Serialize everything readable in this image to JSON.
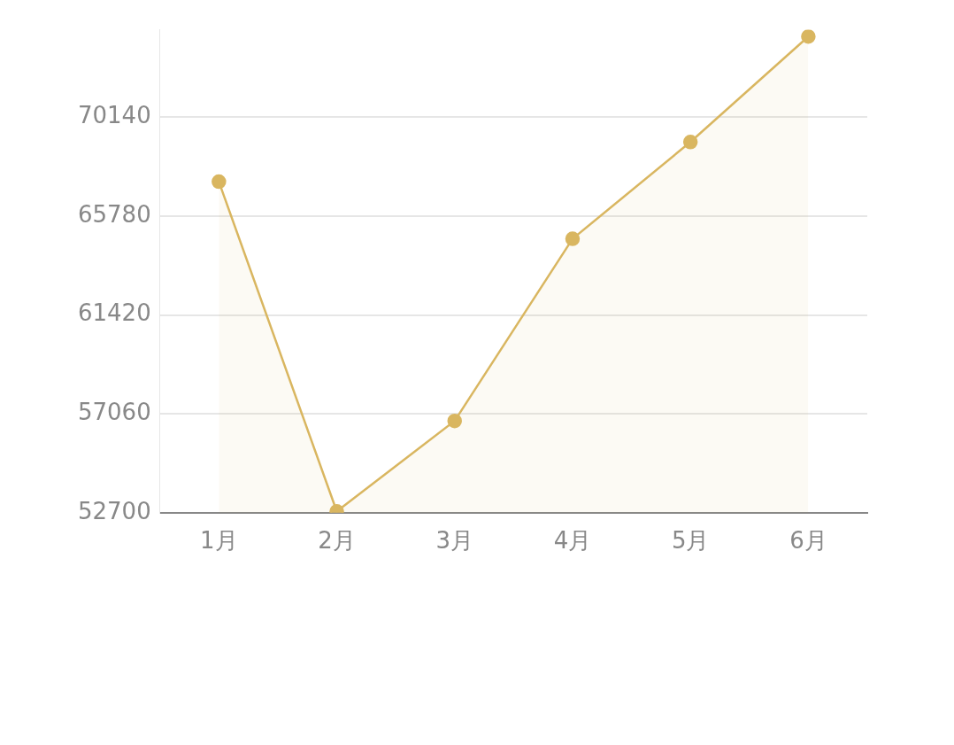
{
  "chart_data": {
    "type": "area",
    "categories": [
      "1月",
      "2月",
      "3月",
      "4月",
      "5月",
      "6月"
    ],
    "series": [
      {
        "color": "#d9b660",
        "values": [
          67300,
          52760,
          56750,
          64780,
          69050,
          73700
        ]
      }
    ],
    "ylim": [
      52700,
      74000
    ],
    "yticks": [
      52700,
      57060,
      61420,
      65780,
      70140
    ],
    "grid": "y",
    "marker": "circle"
  }
}
